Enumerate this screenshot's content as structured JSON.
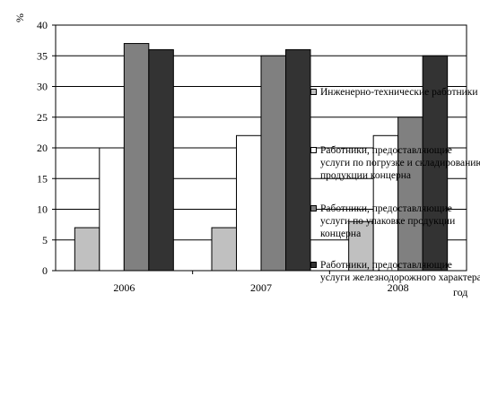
{
  "chart_data": {
    "type": "bar",
    "y_unit_label": "%",
    "x_unit_label": "год",
    "categories": [
      "2006",
      "2007",
      "2008"
    ],
    "ylim": [
      0,
      40
    ],
    "yticks": [
      0,
      5,
      10,
      15,
      20,
      25,
      30,
      35,
      40
    ],
    "grid": true,
    "legend_position": "right",
    "series": [
      {
        "name": "Инженерно-технические работники",
        "color": "#c0c0c0",
        "values": [
          7,
          7,
          8
        ]
      },
      {
        "name": "Работники, предоставляющие услуги по погрузке и складированию продукции концерна",
        "color": "#ffffff",
        "values": [
          20,
          22,
          22
        ]
      },
      {
        "name": "Работники, предоставляющие услуги по упаковке продукции концерна",
        "color": "#808080",
        "values": [
          37,
          35,
          25
        ]
      },
      {
        "name": "Работники, предоставляющие услуги железнодорожного характера",
        "color": "#333333",
        "values": [
          36,
          36,
          35
        ]
      }
    ]
  }
}
